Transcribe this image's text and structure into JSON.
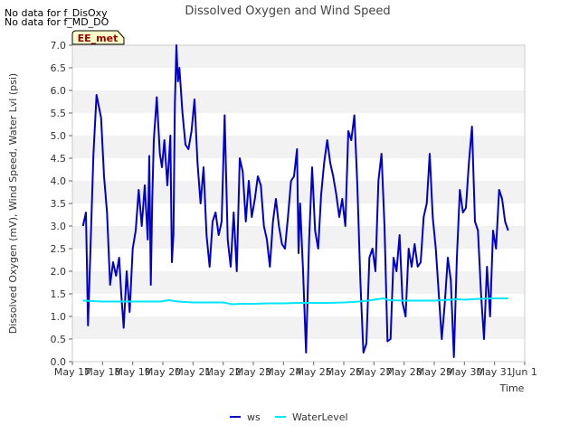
{
  "notes": [
    "No data for f_DisOxy",
    "No data for f_MD_DO"
  ],
  "chart_data": {
    "type": "line",
    "title": "Dissolved Oxygen and Wind Speed",
    "xlabel": "Time",
    "ylabel": "Dissolved Oxygen (mV), Wind Speed, Water Lvl (psi)",
    "badge": "EE_met",
    "xlim": [
      17,
      32
    ],
    "ylim": [
      0,
      7.0
    ],
    "xticks": [
      17,
      18,
      19,
      20,
      21,
      22,
      23,
      24,
      25,
      26,
      27,
      28,
      29,
      30,
      31,
      32
    ],
    "xtick_labels": [
      "May 17",
      "May 18",
      "May 19",
      "May 20",
      "May 21",
      "May 22",
      "May 23",
      "May 24",
      "May 25",
      "May 26",
      "May 27",
      "May 28",
      "May 29",
      "May 30",
      "May 31",
      "Jun 1"
    ],
    "yticks": [
      0.0,
      0.5,
      1.0,
      1.5,
      2.0,
      2.5,
      3.0,
      3.5,
      4.0,
      4.5,
      5.0,
      5.5,
      6.0,
      6.5,
      7.0
    ],
    "ytick_labels": [
      "0.0",
      "0.5",
      "1.0",
      "1.5",
      "2.0",
      "2.5",
      "3.0",
      "3.5",
      "4.0",
      "4.5",
      "5.0",
      "5.5",
      "6.0",
      "6.5",
      "7.0"
    ],
    "grid": "horizontal bands",
    "legend_position": "bottom-center",
    "series": [
      {
        "name": "ws",
        "color": "#0000cc",
        "x": [
          17.35,
          17.45,
          17.52,
          17.6,
          17.7,
          17.8,
          17.95,
          18.05,
          18.15,
          18.25,
          18.35,
          18.45,
          18.55,
          18.62,
          18.7,
          18.8,
          18.9,
          19.0,
          19.1,
          19.2,
          19.3,
          19.4,
          19.5,
          19.55,
          19.6,
          19.65,
          19.7,
          19.8,
          19.9,
          19.97,
          20.05,
          20.15,
          20.25,
          20.3,
          20.35,
          20.4,
          20.45,
          20.5,
          20.55,
          20.65,
          20.75,
          20.85,
          20.95,
          21.05,
          21.15,
          21.25,
          21.35,
          21.45,
          21.55,
          21.65,
          21.75,
          21.85,
          21.95,
          22.05,
          22.15,
          22.25,
          22.35,
          22.45,
          22.55,
          22.65,
          22.75,
          22.85,
          22.95,
          23.05,
          23.15,
          23.25,
          23.35,
          23.45,
          23.55,
          23.65,
          23.75,
          23.85,
          23.95,
          24.05,
          24.15,
          24.25,
          24.35,
          24.45,
          24.5,
          24.55,
          24.65,
          24.75,
          24.85,
          24.95,
          25.05,
          25.15,
          25.25,
          25.35,
          25.45,
          25.55,
          25.65,
          25.75,
          25.85,
          25.95,
          26.05,
          26.15,
          26.25,
          26.35,
          26.45,
          26.55,
          26.65,
          26.75,
          26.85,
          26.95,
          27.05,
          27.15,
          27.25,
          27.35,
          27.45,
          27.55,
          27.65,
          27.75,
          27.85,
          27.95,
          28.05,
          28.15,
          28.25,
          28.35,
          28.45,
          28.55,
          28.65,
          28.75,
          28.85,
          28.95,
          29.05,
          29.15,
          29.25,
          29.35,
          29.45,
          29.55,
          29.65,
          29.75,
          29.85,
          29.95,
          30.05,
          30.15,
          30.25,
          30.35,
          30.45,
          30.55,
          30.65,
          30.75,
          30.85,
          30.95,
          31.05,
          31.15,
          31.25,
          31.35,
          31.45
        ],
        "y": [
          3.0,
          3.3,
          0.8,
          2.5,
          4.6,
          5.9,
          5.4,
          4.1,
          3.3,
          1.7,
          2.2,
          1.9,
          2.3,
          1.5,
          0.75,
          2.0,
          1.1,
          2.5,
          2.9,
          3.8,
          3.0,
          3.9,
          2.7,
          4.55,
          1.7,
          3.6,
          4.9,
          5.85,
          4.6,
          4.3,
          4.9,
          3.9,
          5.0,
          2.2,
          2.8,
          5.7,
          7.0,
          6.2,
          6.5,
          5.5,
          4.8,
          4.7,
          5.1,
          5.8,
          4.4,
          3.5,
          4.3,
          2.8,
          2.1,
          3.1,
          3.3,
          2.8,
          3.1,
          5.45,
          2.7,
          2.1,
          3.3,
          2.0,
          4.5,
          4.2,
          3.1,
          4.0,
          3.2,
          3.6,
          4.1,
          3.9,
          3.0,
          2.7,
          2.1,
          3.1,
          3.6,
          3.0,
          2.6,
          2.5,
          3.2,
          4.0,
          4.1,
          4.7,
          2.4,
          3.5,
          2.0,
          0.2,
          2.7,
          4.3,
          2.9,
          2.5,
          3.7,
          4.4,
          4.9,
          4.4,
          4.1,
          3.7,
          3.2,
          3.6,
          3.0,
          5.1,
          4.9,
          5.45,
          3.9,
          1.8,
          0.2,
          0.4,
          2.3,
          2.5,
          2.0,
          4.0,
          4.6,
          3.0,
          0.45,
          0.5,
          2.3,
          2.0,
          2.8,
          1.3,
          1.0,
          2.5,
          2.1,
          2.6,
          2.1,
          2.2,
          3.2,
          3.5,
          4.6,
          3.2,
          2.5,
          1.5,
          0.5,
          1.3,
          2.3,
          1.8,
          0.1,
          2.3,
          3.8,
          3.3,
          3.4,
          4.4,
          5.2,
          3.1,
          2.9,
          1.5,
          0.5,
          2.1,
          1.0,
          2.9,
          2.5,
          3.8,
          3.6,
          3.1,
          2.9
        ]
      },
      {
        "name": "WaterLevel",
        "color": "#00e5ff",
        "x": [
          17.35,
          18.0,
          18.5,
          19.0,
          19.5,
          19.9,
          20.2,
          20.5,
          21.0,
          21.5,
          22.0,
          22.3,
          22.6,
          23.0,
          23.5,
          24.0,
          24.5,
          25.0,
          25.5,
          26.0,
          26.5,
          26.8,
          27.0,
          27.3,
          27.5,
          28.0,
          28.5,
          29.0,
          29.5,
          29.8,
          30.0,
          30.5,
          31.0,
          31.45
        ],
        "y": [
          1.35,
          1.33,
          1.33,
          1.33,
          1.33,
          1.33,
          1.36,
          1.33,
          1.31,
          1.31,
          1.31,
          1.27,
          1.28,
          1.28,
          1.29,
          1.29,
          1.3,
          1.3,
          1.3,
          1.31,
          1.33,
          1.35,
          1.37,
          1.4,
          1.36,
          1.35,
          1.35,
          1.35,
          1.37,
          1.38,
          1.37,
          1.39,
          1.4,
          1.4
        ]
      }
    ]
  }
}
